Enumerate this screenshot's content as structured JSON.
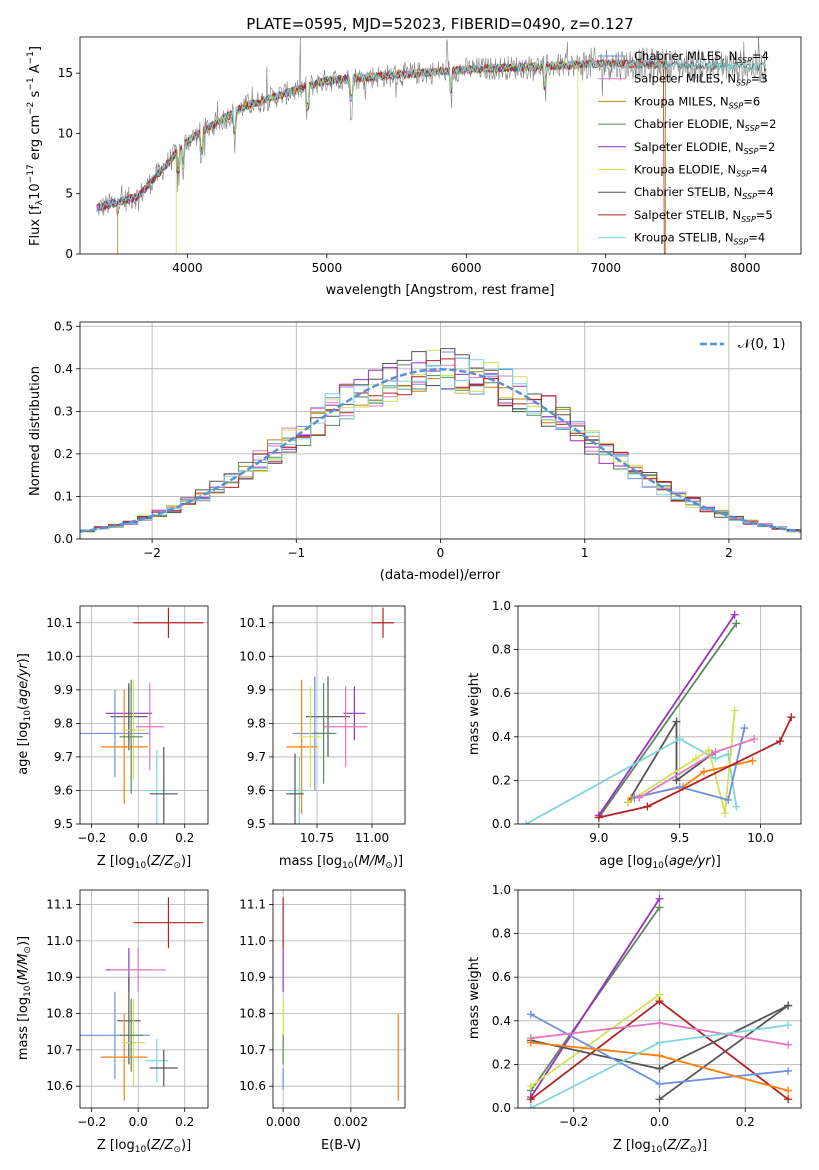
{
  "chart_data": [
    {
      "id": "spectrum",
      "type": "line",
      "title": "PLATE=0595, MJD=52023, FIBERID=0490, z=0.127",
      "xlabel": "wavelength [Angstrom, rest frame]",
      "ylabel": "Flux [f_λ 10^-17 erg cm^-2 s^-1 A^-1]",
      "xlim": [
        3230,
        8400
      ],
      "ylim": [
        0,
        18
      ],
      "xticks": [
        4000,
        5000,
        6000,
        7000,
        8000
      ],
      "yticks": [
        0,
        5,
        10,
        15
      ],
      "grid": false,
      "legend_position": "top-right",
      "series": [
        {
          "name": "Chabrier MILES, N_SSP=4",
          "color": "#6f8fe0",
          "xlim": [
            3350,
            7400
          ],
          "drop_at": []
        },
        {
          "name": "Salpeter MILES, N_SSP=3",
          "color": "#e377c2",
          "xlim": [
            3350,
            7400
          ],
          "drop_at": []
        },
        {
          "name": "Kroupa MILES, N_SSP=6",
          "color": "#b8860b",
          "xlim": [
            3500,
            7430
          ],
          "drop_at": [
            3500,
            7430
          ]
        },
        {
          "name": "Chabrier ELODIE, N_SSP=2",
          "color": "#5a8a5a",
          "xlim": [
            3350,
            6800
          ],
          "drop_at": []
        },
        {
          "name": "Salpeter ELODIE, N_SSP=2",
          "color": "#9b30c0",
          "xlim": [
            3350,
            6800
          ],
          "drop_at": []
        },
        {
          "name": "Kroupa ELODIE, N_SSP=4",
          "color": "#d4e157",
          "xlim": [
            3920,
            6800
          ],
          "drop_at": [
            3920,
            6800
          ]
        },
        {
          "name": "Chabrier STELIB, N_SSP=4",
          "color": "#555555",
          "xlim": [
            3350,
            8150
          ],
          "drop_at": []
        },
        {
          "name": "Salpeter STELIB, N_SSP=5",
          "color": "#b22222",
          "xlim": [
            3350,
            7420
          ],
          "drop_at": [
            3500,
            7420
          ]
        },
        {
          "name": "Kroupa STELIB, N_SSP=4",
          "color": "#7fd6d6",
          "xlim": [
            3350,
            8150
          ],
          "drop_at": []
        }
      ]
    },
    {
      "id": "residuals",
      "type": "line",
      "xlabel": "(data-model)/error",
      "ylabel": "Normed distribution",
      "xlim": [
        -2.5,
        2.5
      ],
      "ylim": [
        0,
        0.51
      ],
      "xticks": [
        -2,
        -1,
        0,
        1,
        2
      ],
      "yticks": [
        0.0,
        0.1,
        0.2,
        0.3,
        0.4,
        0.5
      ],
      "grid": true,
      "legend_position": "top-right",
      "reference": {
        "name": "𝒩(0, 1)",
        "color": "#5b8fd6",
        "mean": 0,
        "sigma": 1
      },
      "bin_width": 0.1
    },
    {
      "id": "age-vs-Z",
      "type": "scatter",
      "xlabel": "Z [log10(Z/Z⊙)]",
      "ylabel": "age [log10(age/yr)]",
      "xlim": [
        -0.25,
        0.3
      ],
      "ylim": [
        9.5,
        10.15
      ],
      "xticks": [
        -0.2,
        0.0,
        0.2
      ],
      "yticks": [
        9.5,
        9.6,
        9.7,
        9.8,
        9.9,
        10.0,
        10.1
      ],
      "grid": true,
      "points": [
        {
          "x": 0.13,
          "y": 10.1,
          "xerr": 0.15,
          "yerr": 0.045,
          "color": "#b22222"
        },
        {
          "x": -0.04,
          "y": 9.83,
          "xerr": 0.1,
          "yerr": 0.08,
          "color": "#9b30c0"
        },
        {
          "x": -0.04,
          "y": 9.82,
          "xerr": 0.08,
          "yerr": 0.1,
          "color": "#555555"
        },
        {
          "x": -0.1,
          "y": 9.77,
          "xerr": 0.15,
          "yerr": 0.13,
          "color": "#6f8fe0"
        },
        {
          "x": 0.05,
          "y": 9.79,
          "xerr": 0.06,
          "yerr": 0.13,
          "color": "#e377c2"
        },
        {
          "x": -0.06,
          "y": 9.73,
          "xerr": 0.1,
          "yerr": 0.17,
          "color": "#ff7f0e"
        },
        {
          "x": -0.02,
          "y": 9.78,
          "xerr": 0.05,
          "yerr": 0.15,
          "color": "#d4e157"
        },
        {
          "x": -0.03,
          "y": 9.76,
          "xerr": 0.05,
          "yerr": 0.17,
          "color": "#5a8a5a"
        },
        {
          "x": 0.08,
          "y": 9.6,
          "xerr": 0.05,
          "yerr": 0.12,
          "color": "#7fd6d6"
        },
        {
          "x": 0.11,
          "y": 9.59,
          "xerr": 0.06,
          "yerr": 0.14,
          "color": "#555555"
        }
      ]
    },
    {
      "id": "age-vs-mass",
      "type": "scatter",
      "xlabel": "mass [log10(M/M⊙)]",
      "ylim": [
        9.5,
        10.15
      ],
      "xlim": [
        10.55,
        11.15
      ],
      "xticks": [
        10.75,
        11.0
      ],
      "yticks": [
        9.5,
        9.6,
        9.7,
        9.8,
        9.9,
        10.0,
        10.1
      ],
      "grid": true,
      "points": [
        {
          "x": 11.05,
          "y": 10.1,
          "xerr": 0.05,
          "yerr": 0.045,
          "color": "#b22222"
        },
        {
          "x": 10.92,
          "y": 9.83,
          "xerr": 0.05,
          "yerr": 0.08,
          "color": "#9b30c0"
        },
        {
          "x": 10.8,
          "y": 9.82,
          "xerr": 0.1,
          "yerr": 0.12,
          "color": "#555555"
        },
        {
          "x": 10.74,
          "y": 9.77,
          "xerr": 0.1,
          "yerr": 0.17,
          "color": "#6f8fe0"
        },
        {
          "x": 10.88,
          "y": 9.79,
          "xerr": 0.1,
          "yerr": 0.12,
          "color": "#e377c2"
        },
        {
          "x": 10.68,
          "y": 9.73,
          "xerr": 0.07,
          "yerr": 0.2,
          "color": "#ff7f0e"
        },
        {
          "x": 10.72,
          "y": 9.76,
          "xerr": 0.05,
          "yerr": 0.15,
          "color": "#d4e157"
        },
        {
          "x": 10.78,
          "y": 9.77,
          "xerr": 0.05,
          "yerr": 0.15,
          "color": "#5a8a5a"
        },
        {
          "x": 10.67,
          "y": 9.6,
          "xerr": 0.04,
          "yerr": 0.1,
          "color": "#7fd6d6"
        },
        {
          "x": 10.65,
          "y": 9.59,
          "xerr": 0.04,
          "yerr": 0.12,
          "color": "#555555"
        }
      ]
    },
    {
      "id": "weight-vs-age",
      "type": "line",
      "xlabel": "age [log10(age/yr)]",
      "ylabel": "mass weight",
      "xlim": [
        8.5,
        10.25
      ],
      "ylim": [
        0,
        1.0
      ],
      "xticks": [
        9.0,
        9.5,
        10.0
      ],
      "yticks": [
        0.0,
        0.2,
        0.4,
        0.6,
        0.8,
        1.0
      ],
      "grid": true,
      "series": [
        {
          "color": "#5a8a5a",
          "x": [
            9.0,
            9.85
          ],
          "y": [
            0.03,
            0.92
          ]
        },
        {
          "color": "#9b30c0",
          "x": [
            9.0,
            9.84
          ],
          "y": [
            0.04,
            0.96
          ]
        },
        {
          "color": "#555555",
          "x": [
            9.18,
            9.48,
            9.48,
            9.7
          ],
          "y": [
            0.1,
            0.47,
            0.2,
            0.32
          ]
        },
        {
          "color": "#7fd6d6",
          "x": [
            8.55,
            9.5,
            9.72,
            9.8,
            9.85
          ],
          "y": [
            0.0,
            0.39,
            0.3,
            0.32,
            0.08
          ]
        },
        {
          "color": "#d4e157",
          "x": [
            9.18,
            9.6,
            9.68,
            9.78,
            9.84
          ],
          "y": [
            0.1,
            0.3,
            0.34,
            0.05,
            0.52
          ]
        },
        {
          "color": "#ff7f0e",
          "x": [
            9.2,
            9.52,
            9.65,
            9.95
          ],
          "y": [
            0.12,
            0.17,
            0.24,
            0.29
          ]
        },
        {
          "color": "#6f8fe0",
          "x": [
            9.22,
            9.5,
            9.8,
            9.9
          ],
          "y": [
            0.12,
            0.17,
            0.11,
            0.44
          ]
        },
        {
          "color": "#e377c2",
          "x": [
            9.25,
            9.72,
            9.96
          ],
          "y": [
            0.12,
            0.33,
            0.39
          ]
        },
        {
          "color": "#b22222",
          "x": [
            9.0,
            9.3,
            10.12,
            10.19
          ],
          "y": [
            0.03,
            0.08,
            0.38,
            0.49
          ]
        }
      ]
    },
    {
      "id": "mass-vs-Z",
      "type": "scatter",
      "xlabel": "Z [log10(Z/Z⊙)]",
      "ylabel": "mass [log10(M/M⊙)]",
      "xlim": [
        -0.25,
        0.3
      ],
      "ylim": [
        10.54,
        11.14
      ],
      "xticks": [
        -0.2,
        0.0,
        0.2
      ],
      "yticks": [
        10.6,
        10.7,
        10.8,
        10.9,
        11.0,
        11.1
      ],
      "grid": true,
      "points": [
        {
          "x": 0.13,
          "y": 11.05,
          "xerr": 0.15,
          "yerr": 0.07,
          "color": "#b22222"
        },
        {
          "x": -0.04,
          "y": 10.92,
          "xerr": 0.1,
          "yerr": 0.06,
          "color": "#9b30c0"
        },
        {
          "x": 0.0,
          "y": 10.92,
          "xerr": 0.12,
          "yerr": 0.06,
          "color": "#e377c2"
        },
        {
          "x": -0.04,
          "y": 10.78,
          "xerr": 0.05,
          "yerr": 0.12,
          "color": "#555555"
        },
        {
          "x": -0.1,
          "y": 10.74,
          "xerr": 0.15,
          "yerr": 0.12,
          "color": "#6f8fe0"
        },
        {
          "x": -0.06,
          "y": 10.68,
          "xerr": 0.1,
          "yerr": 0.12,
          "color": "#ff7f0e"
        },
        {
          "x": -0.02,
          "y": 10.72,
          "xerr": 0.05,
          "yerr": 0.12,
          "color": "#d4e157"
        },
        {
          "x": -0.03,
          "y": 10.74,
          "xerr": 0.05,
          "yerr": 0.1,
          "color": "#5a8a5a"
        },
        {
          "x": 0.08,
          "y": 10.67,
          "xerr": 0.05,
          "yerr": 0.06,
          "color": "#7fd6d6"
        },
        {
          "x": 0.11,
          "y": 10.65,
          "xerr": 0.06,
          "yerr": 0.05,
          "color": "#555555"
        }
      ]
    },
    {
      "id": "mass-vs-EBV",
      "type": "scatter",
      "xlabel": "E(B-V)",
      "xlim": [
        -0.0003,
        0.0036
      ],
      "ylim": [
        10.54,
        11.14
      ],
      "xticks": [
        0.0,
        0.002
      ],
      "yticks": [
        10.6,
        10.7,
        10.8,
        10.9,
        11.0,
        11.1
      ],
      "grid": true,
      "points": [
        {
          "x": 0.0,
          "y": 11.05,
          "xerr": 0.0,
          "yerr": 0.07,
          "color": "#b22222"
        },
        {
          "x": 0.0,
          "y": 10.92,
          "xerr": 0.0,
          "yerr": 0.06,
          "color": "#9b30c0"
        },
        {
          "x": 0.0,
          "y": 10.78,
          "xerr": 0.0,
          "yerr": 0.06,
          "color": "#d4e157"
        },
        {
          "x": 0.0,
          "y": 10.7,
          "xerr": 0.0,
          "yerr": 0.04,
          "color": "#5a8a5a"
        },
        {
          "x": 0.0,
          "y": 10.62,
          "xerr": 0.0,
          "yerr": 0.03,
          "color": "#6f8fe0"
        },
        {
          "x": 0.0034,
          "y": 10.68,
          "xerr": 0.0,
          "yerr": 0.12,
          "color": "#ff7f0e"
        }
      ]
    },
    {
      "id": "weight-vs-Z",
      "type": "line",
      "xlabel": "Z [log10(Z/Z⊙)]",
      "ylabel": "mass weight",
      "xlim": [
        -0.33,
        0.33
      ],
      "ylim": [
        0,
        1.0
      ],
      "xticks": [
        -0.2,
        0.0,
        0.2
      ],
      "yticks": [
        0.0,
        0.2,
        0.4,
        0.6,
        0.8,
        1.0
      ],
      "grid": true,
      "series": [
        {
          "color": "#5a8a5a",
          "x": [
            -0.3,
            0.0
          ],
          "y": [
            0.08,
            0.92
          ]
        },
        {
          "color": "#9b30c0",
          "x": [
            -0.3,
            0.0
          ],
          "y": [
            0.05,
            0.96
          ]
        },
        {
          "color": "#d4e157",
          "x": [
            -0.3,
            0.0,
            0.0
          ],
          "y": [
            0.1,
            0.52,
            0.5
          ]
        },
        {
          "color": "#b22222",
          "x": [
            -0.3,
            0.0,
            0.3
          ],
          "y": [
            0.04,
            0.49,
            0.04
          ]
        },
        {
          "color": "#555555",
          "x": [
            -0.3,
            0.0,
            0.3
          ],
          "y": [
            0.31,
            0.18,
            0.47
          ]
        },
        {
          "color": "#555555",
          "x": [
            0.0,
            0.3
          ],
          "y": [
            0.04,
            0.47
          ]
        },
        {
          "color": "#6f8fe0",
          "x": [
            -0.3,
            0.0,
            0.3
          ],
          "y": [
            0.43,
            0.11,
            0.17
          ]
        },
        {
          "color": "#e377c2",
          "x": [
            -0.3,
            0.0,
            0.3
          ],
          "y": [
            0.32,
            0.39,
            0.29
          ]
        },
        {
          "color": "#ff7f0e",
          "x": [
            -0.3,
            0.0,
            0.3
          ],
          "y": [
            0.3,
            0.24,
            0.08
          ]
        },
        {
          "color": "#7fd6d6",
          "x": [
            -0.3,
            0.0,
            0.3
          ],
          "y": [
            0.0,
            0.3,
            0.38
          ]
        }
      ]
    }
  ]
}
